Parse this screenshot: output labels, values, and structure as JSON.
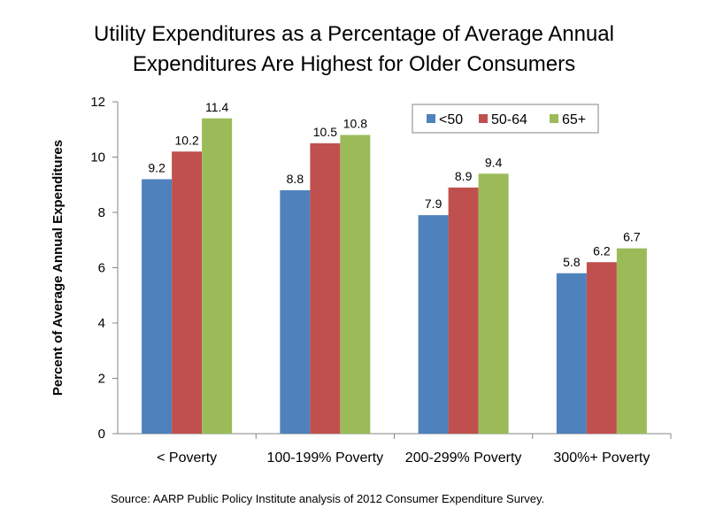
{
  "chart_data": {
    "type": "bar",
    "title_lines": [
      "Utility Expenditures as a Percentage of Average Annual",
      "Expenditures Are Highest for Older Consumers"
    ],
    "ylabel": "Percent of Average Annual Expenditures",
    "xlabel": "",
    "ylim": [
      0,
      12
    ],
    "yticks": [
      "0",
      "2",
      "4",
      "6",
      "8",
      "10",
      "12"
    ],
    "categories": [
      "< Poverty",
      "100-199% Poverty",
      "200-299% Poverty",
      "300%+ Poverty"
    ],
    "series": [
      {
        "name": "<50",
        "color": "#4f81bd",
        "values": [
          9.2,
          8.8,
          7.9,
          5.8
        ],
        "labels": [
          "9.2",
          "8.8",
          "7.9",
          "5.8"
        ]
      },
      {
        "name": "50-64",
        "color": "#c0504d",
        "values": [
          10.2,
          10.5,
          8.9,
          6.2
        ],
        "labels": [
          "10.2",
          "10.5",
          "8.9",
          "6.2"
        ]
      },
      {
        "name": "65+",
        "color": "#9bbb59",
        "values": [
          11.4,
          10.8,
          9.4,
          6.7
        ],
        "labels": [
          "11.4",
          "10.8",
          "9.4",
          "6.7"
        ]
      }
    ],
    "legend_position": "top-right",
    "grid": false
  },
  "source": "Source:  AARP Public Policy Institute analysis of 2012 Consumer Expenditure Survey."
}
